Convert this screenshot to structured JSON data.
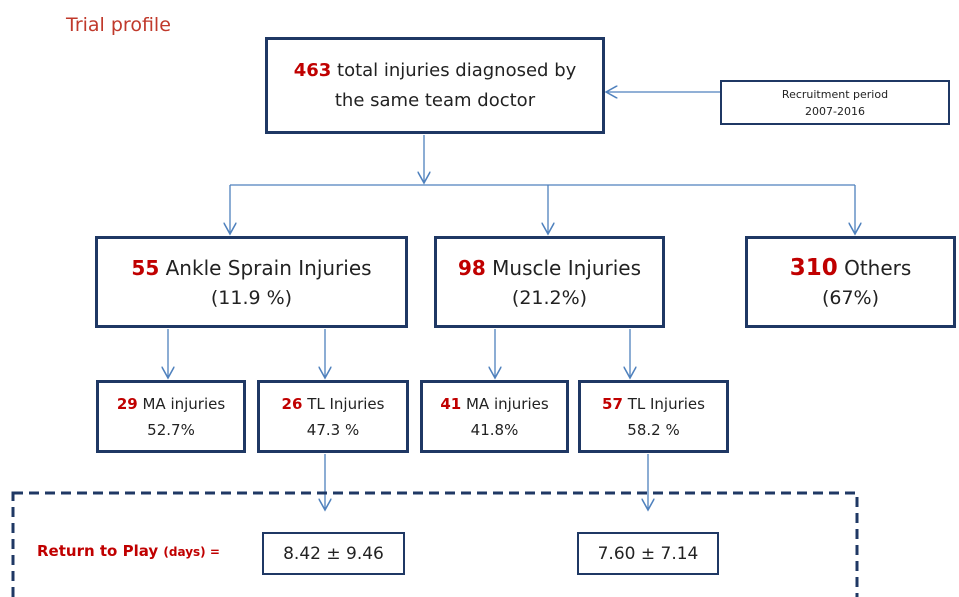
{
  "title": "Trial profile",
  "top": {
    "count": "463",
    "text_1": "total injuries diagnosed by",
    "text_2": "the same team doctor"
  },
  "recruitment": {
    "line_1": "Recruitment period",
    "line_2": "2007-2016"
  },
  "groups": [
    {
      "count": "55",
      "label": "Ankle Sprain Injuries",
      "percent": "(11.9 %)"
    },
    {
      "count": "98",
      "label": "Muscle Injuries",
      "percent": "(21.2%)"
    },
    {
      "count": "310",
      "label": "Others",
      "percent": "(67%)"
    }
  ],
  "subgroups": [
    {
      "count": "29",
      "label": "MA injuries",
      "percent": "52.7%"
    },
    {
      "count": "26",
      "label": "TL Injuries",
      "percent": "47.3 %"
    },
    {
      "count": "41",
      "label": "MA injuries",
      "percent": "41.8%"
    },
    {
      "count": "57",
      "label": "TL Injuries",
      "percent": "58.2 %"
    }
  ],
  "return_to_play": {
    "label": "Return to Play",
    "unit": "(days) =",
    "values": [
      "8.42 ± 9.46",
      "7.60 ± 7.14"
    ]
  }
}
